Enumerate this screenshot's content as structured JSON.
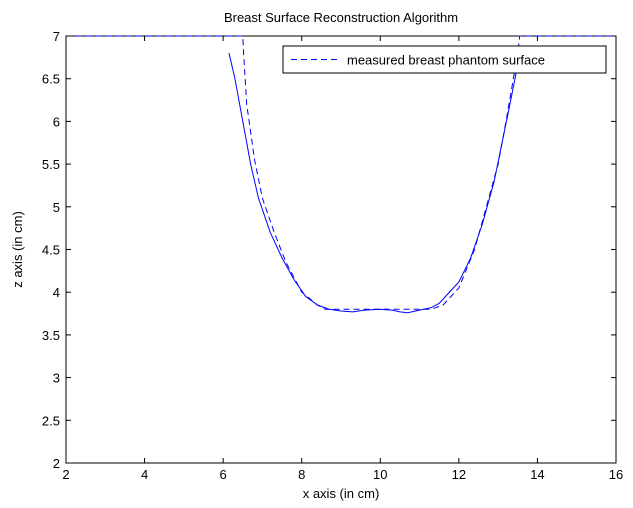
{
  "chart_data": {
    "type": "line",
    "title": "Breast Surface Reconstruction Algorithm",
    "xlabel": "x axis (in cm)",
    "ylabel": "z axis (in cm)",
    "xlim": [
      2,
      16
    ],
    "ylim": [
      2,
      7
    ],
    "xticks": [
      2,
      4,
      6,
      8,
      10,
      12,
      14,
      16
    ],
    "yticks": [
      2,
      2.5,
      3,
      3.5,
      4,
      4.5,
      5,
      5.5,
      6,
      6.5,
      7
    ],
    "xtick_labels": [
      "2",
      "4",
      "6",
      "8",
      "10",
      "12",
      "14",
      "16"
    ],
    "ytick_labels": [
      "2",
      "2.5",
      "3",
      "3.5",
      "4",
      "4.5",
      "5",
      "5.5",
      "6",
      "6.5",
      "7"
    ],
    "grid": false,
    "legend_position": "top-right",
    "series": [
      {
        "name": "measured breast phantom surface",
        "style": "dashed",
        "color": "#0000ff",
        "x": [
          2,
          6.5,
          6.52,
          6.6,
          6.8,
          7.0,
          7.3,
          7.6,
          8.0,
          8.4,
          8.6,
          9.5,
          10.5,
          11.3,
          11.6,
          12.0,
          12.4,
          12.7,
          13.0,
          13.2,
          13.35,
          13.5,
          13.55,
          16
        ],
        "y": [
          7,
          7,
          6.8,
          6.2,
          5.55,
          5.1,
          4.7,
          4.35,
          4.0,
          3.85,
          3.8,
          3.8,
          3.8,
          3.8,
          3.85,
          4.05,
          4.5,
          5.0,
          5.5,
          6.0,
          6.4,
          6.8,
          7,
          7
        ]
      },
      {
        "name": "",
        "style": "solid",
        "color": "#0000ff",
        "x": [
          6.15,
          6.3,
          6.5,
          6.7,
          6.9,
          7.2,
          7.5,
          7.8,
          8.1,
          8.4,
          8.7,
          9.0,
          9.3,
          9.6,
          10.0,
          10.3,
          10.5,
          10.7,
          10.9,
          11.1,
          11.3,
          11.5,
          11.7,
          12.0,
          12.3,
          12.6,
          12.9,
          13.1,
          13.3,
          13.45,
          13.55
        ],
        "y": [
          6.8,
          6.5,
          6.0,
          5.5,
          5.1,
          4.7,
          4.4,
          4.15,
          3.95,
          3.85,
          3.8,
          3.78,
          3.77,
          3.79,
          3.8,
          3.79,
          3.77,
          3.76,
          3.78,
          3.8,
          3.82,
          3.87,
          3.97,
          4.12,
          4.4,
          4.8,
          5.3,
          5.75,
          6.2,
          6.55,
          6.75
        ]
      }
    ]
  }
}
